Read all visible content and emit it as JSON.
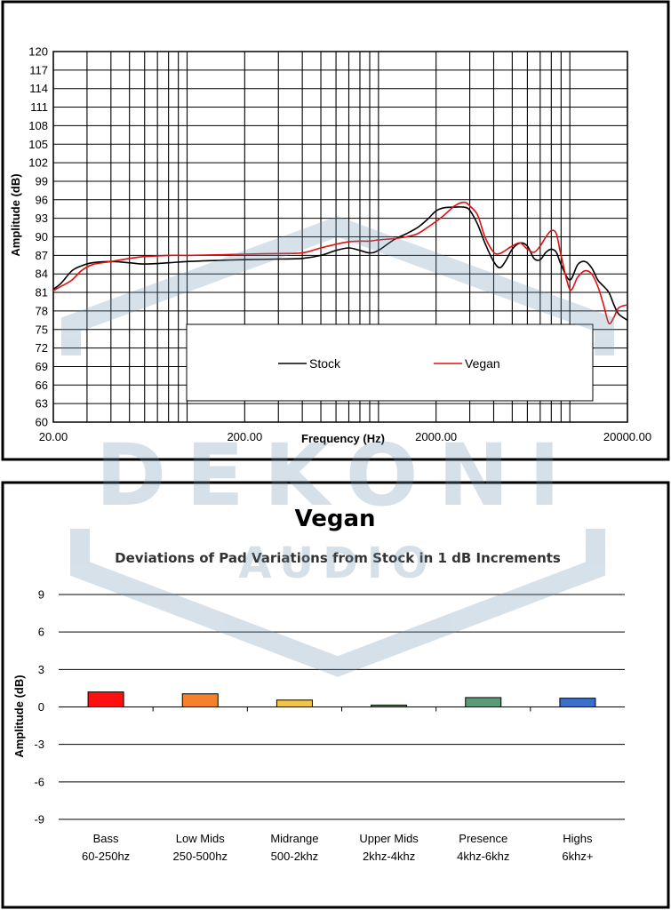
{
  "watermark": {
    "brand": "DEKONI",
    "sub": "AUDIO"
  },
  "chart_data": [
    {
      "type": "line",
      "title": "",
      "xlabel": "Frequency (Hz)",
      "ylabel": "Amplitude (dB)",
      "xscale": "log",
      "xlim": [
        20,
        20000
      ],
      "ylim": [
        60,
        120
      ],
      "xtick_labels": [
        "20.00",
        "200.00",
        "2000.00",
        "20000.00"
      ],
      "xticks": [
        20,
        200,
        2000,
        20000
      ],
      "yticks": [
        60,
        63,
        66,
        69,
        72,
        75,
        78,
        81,
        84,
        87,
        90,
        93,
        96,
        99,
        102,
        105,
        108,
        111,
        114,
        117,
        120
      ],
      "grid": true,
      "legend_position": "bottom-center",
      "series": [
        {
          "name": "Stock",
          "color": "#000000",
          "points": [
            [
              20,
              81.5
            ],
            [
              22,
              82.5
            ],
            [
              25,
              84.5
            ],
            [
              28,
              85.3
            ],
            [
              32,
              85.8
            ],
            [
              40,
              86.0
            ],
            [
              50,
              85.8
            ],
            [
              60,
              85.6
            ],
            [
              80,
              85.8
            ],
            [
              100,
              86.0
            ],
            [
              150,
              86.2
            ],
            [
              200,
              86.3
            ],
            [
              300,
              86.4
            ],
            [
              400,
              86.5
            ],
            [
              500,
              87.0
            ],
            [
              600,
              87.8
            ],
            [
              700,
              88.2
            ],
            [
              800,
              87.8
            ],
            [
              900,
              87.4
            ],
            [
              1000,
              87.8
            ],
            [
              1200,
              89.5
            ],
            [
              1400,
              90.5
            ],
            [
              1600,
              91.5
            ],
            [
              1800,
              92.8
            ],
            [
              2000,
              94.2
            ],
            [
              2200,
              94.7
            ],
            [
              2500,
              94.8
            ],
            [
              2800,
              94.8
            ],
            [
              3000,
              94.3
            ],
            [
              3300,
              92.0
            ],
            [
              3600,
              89.0
            ],
            [
              4000,
              86.0
            ],
            [
              4300,
              85.0
            ],
            [
              4600,
              86.0
            ],
            [
              5000,
              88.0
            ],
            [
              5500,
              89.0
            ],
            [
              6000,
              88.5
            ],
            [
              6500,
              86.5
            ],
            [
              7000,
              86.3
            ],
            [
              7500,
              87.5
            ],
            [
              8000,
              88.0
            ],
            [
              8500,
              87.5
            ],
            [
              9000,
              85.5
            ],
            [
              10000,
              83.0
            ],
            [
              11000,
              85.5
            ],
            [
              12000,
              86.0
            ],
            [
              13000,
              85.0
            ],
            [
              14000,
              83.0
            ],
            [
              15000,
              82.0
            ],
            [
              16000,
              81.0
            ],
            [
              17000,
              79.0
            ],
            [
              18000,
              77.5
            ],
            [
              20000,
              76.5
            ]
          ]
        },
        {
          "name": "Vegan",
          "color": "#e01010",
          "points": [
            [
              20,
              81.3
            ],
            [
              22,
              82.0
            ],
            [
              25,
              83.0
            ],
            [
              28,
              84.5
            ],
            [
              32,
              85.5
            ],
            [
              40,
              86.0
            ],
            [
              50,
              86.5
            ],
            [
              60,
              86.8
            ],
            [
              80,
              87.0
            ],
            [
              100,
              87.0
            ],
            [
              150,
              87.1
            ],
            [
              200,
              87.2
            ],
            [
              300,
              87.3
            ],
            [
              400,
              87.4
            ],
            [
              500,
              88.2
            ],
            [
              600,
              88.8
            ],
            [
              700,
              89.2
            ],
            [
              800,
              89.3
            ],
            [
              900,
              89.3
            ],
            [
              1000,
              89.5
            ],
            [
              1200,
              89.7
            ],
            [
              1400,
              90.0
            ],
            [
              1600,
              90.5
            ],
            [
              1800,
              91.5
            ],
            [
              2000,
              92.5
            ],
            [
              2200,
              93.5
            ],
            [
              2500,
              95.0
            ],
            [
              2800,
              95.6
            ],
            [
              3000,
              95.0
            ],
            [
              3300,
              93.5
            ],
            [
              3600,
              90.0
            ],
            [
              4000,
              87.5
            ],
            [
              4300,
              87.3
            ],
            [
              4600,
              87.8
            ],
            [
              5000,
              88.5
            ],
            [
              5500,
              89.0
            ],
            [
              6000,
              88.0
            ],
            [
              6500,
              87.5
            ],
            [
              7000,
              88.5
            ],
            [
              7500,
              90.0
            ],
            [
              8000,
              91.0
            ],
            [
              8500,
              90.5
            ],
            [
              9000,
              87.0
            ],
            [
              10000,
              81.5
            ],
            [
              11000,
              83.5
            ],
            [
              12000,
              84.5
            ],
            [
              13000,
              84.0
            ],
            [
              14000,
              82.0
            ],
            [
              15000,
              79.0
            ],
            [
              16000,
              76.0
            ],
            [
              17000,
              77.0
            ],
            [
              18000,
              78.5
            ],
            [
              20000,
              79.0
            ]
          ]
        }
      ]
    },
    {
      "type": "bar",
      "title": "Vegan",
      "subtitle": "Deviations of Pad Variations from Stock in 1 dB Increments",
      "xlabel": "",
      "ylabel": "Amplitude (dB)",
      "ylim": [
        -9,
        9
      ],
      "yticks": [
        9,
        6,
        3,
        0,
        -3,
        -6,
        -9
      ],
      "grid": true,
      "categories": [
        {
          "line1": "Bass",
          "line2": "60-250hz"
        },
        {
          "line1": "Low Mids",
          "line2": "250-500hz"
        },
        {
          "line1": "Midrange",
          "line2": "500-2khz"
        },
        {
          "line1": "Upper Mids",
          "line2": "2khz-4khz"
        },
        {
          "line1": "Presence",
          "line2": "4khz-6khz"
        },
        {
          "line1": "Highs",
          "line2": "6khz+"
        }
      ],
      "values": [
        1.2,
        1.05,
        0.55,
        0.15,
        0.75,
        0.7
      ],
      "colors": [
        "#ff1010",
        "#f5822a",
        "#f5c542",
        "#6d8a6a",
        "#5a9a78",
        "#3b6fcc"
      ]
    }
  ]
}
